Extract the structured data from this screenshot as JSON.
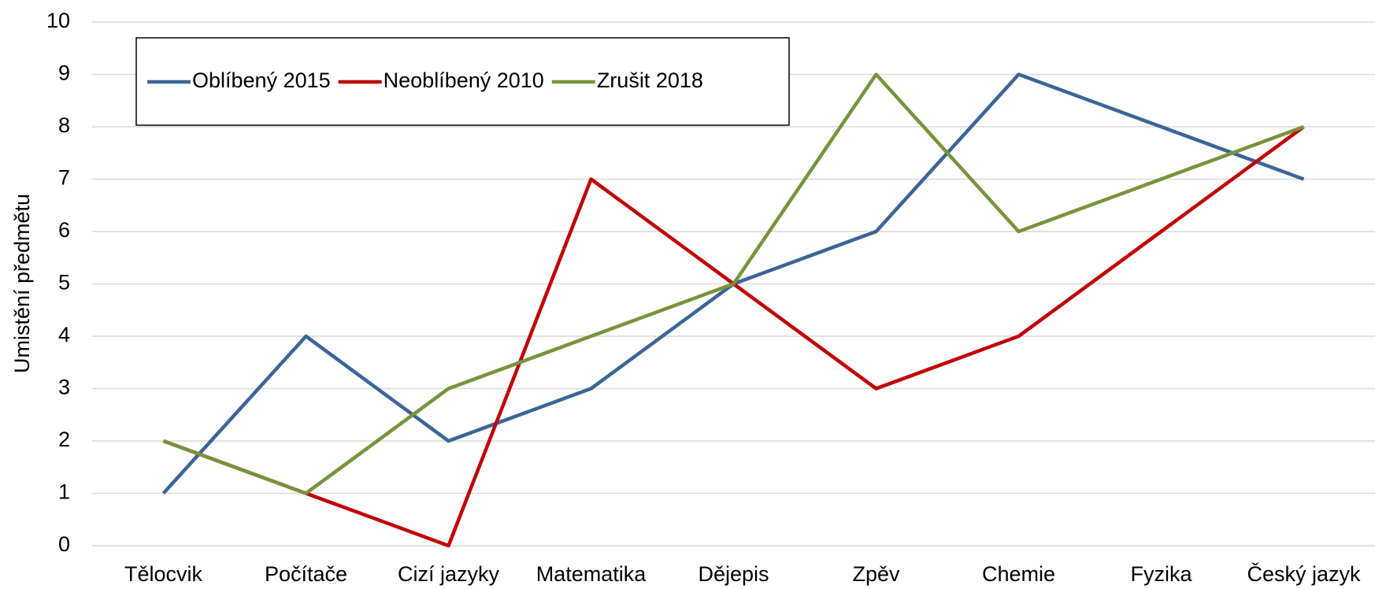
{
  "chart_data": {
    "type": "line",
    "y_label": "Umistění předmětu",
    "categories": [
      "Tělocvik",
      "Počítače",
      "Cizí jazyky",
      "Matematika",
      "Dějepis",
      "Zpěv",
      "Chemie",
      "Fyzika",
      "Český jazyk"
    ],
    "series": [
      {
        "name": "Oblíbený 2015",
        "color": "#3c6496",
        "values": [
          1,
          4,
          2,
          3,
          5,
          6,
          9,
          8,
          7
        ]
      },
      {
        "name": "Neoblíbený 2010",
        "color": "#c00000",
        "values": [
          2,
          1,
          0,
          7,
          5,
          3,
          4,
          6,
          8
        ]
      },
      {
        "name": "Zrušit 2018",
        "color": "#77933c",
        "values": [
          2,
          1,
          3,
          4,
          5,
          9,
          6,
          7,
          8
        ]
      }
    ],
    "ylim": [
      0,
      10
    ],
    "yticks": [
      0,
      1,
      2,
      3,
      4,
      5,
      6,
      7,
      8,
      9,
      10
    ],
    "grid": true,
    "legend": "top-left"
  }
}
